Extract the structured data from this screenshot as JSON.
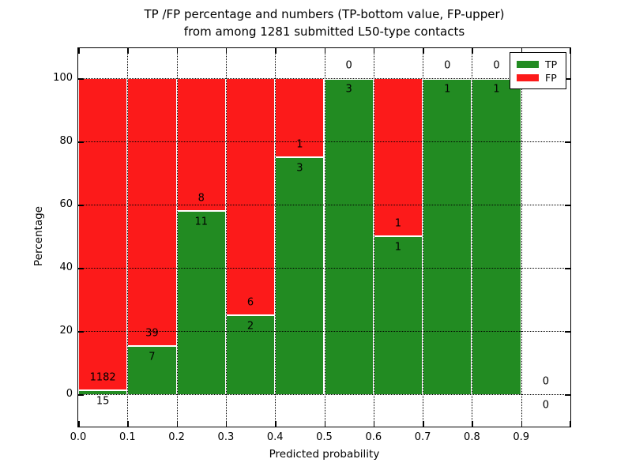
{
  "title": {
    "line1": "TP /FP percentage and numbers (TP-bottom value, FP-upper)",
    "line2": "from among 1281 submitted L50-type contacts"
  },
  "axes": {
    "xlabel": "Predicted probability",
    "ylabel": "Percentage",
    "x_tick_labels": [
      "0.0",
      "0.1",
      "0.2",
      "0.3",
      "0.4",
      "0.5",
      "0.6",
      "0.7",
      "0.8",
      "0.9"
    ],
    "y_tick_labels": [
      "0",
      "20",
      "40",
      "60",
      "80",
      "100"
    ],
    "y_tick_values": [
      0,
      20,
      40,
      60,
      80,
      100
    ],
    "xlim": [
      0.0,
      1.0
    ],
    "grid": "dotted both axes"
  },
  "legend": {
    "position": "upper right",
    "items": [
      {
        "label": "TP",
        "color": "#228b22"
      },
      {
        "label": "FP",
        "color": "#fc1a1a"
      }
    ]
  },
  "colors": {
    "tp_green": "#228b22",
    "fp_red": "#fc1a1a",
    "bar_edge": "#ffffff",
    "text": "#000000",
    "background": "#ffffff"
  },
  "chart_data": {
    "type": "bar",
    "stacked": true,
    "note_total_contacts": 1281,
    "bin_width": 0.1,
    "categories": [
      "0.0-0.1",
      "0.1-0.2",
      "0.2-0.3",
      "0.3-0.4",
      "0.4-0.5",
      "0.5-0.6",
      "0.6-0.7",
      "0.7-0.8",
      "0.8-0.9",
      "0.9-1.0"
    ],
    "series": [
      {
        "name": "TP",
        "counts": [
          15,
          7,
          11,
          2,
          3,
          3,
          1,
          1,
          1,
          0
        ]
      },
      {
        "name": "FP",
        "counts": [
          1182,
          39,
          8,
          6,
          1,
          0,
          1,
          0,
          0,
          0
        ]
      }
    ],
    "bins": [
      {
        "range": [
          0.0,
          0.1
        ],
        "tp": 15,
        "fp": 1182,
        "tp_pct": 1.25
      },
      {
        "range": [
          0.1,
          0.2
        ],
        "tp": 7,
        "fp": 39,
        "tp_pct": 15.22
      },
      {
        "range": [
          0.2,
          0.3
        ],
        "tp": 11,
        "fp": 8,
        "tp_pct": 57.89
      },
      {
        "range": [
          0.3,
          0.4
        ],
        "tp": 2,
        "fp": 6,
        "tp_pct": 25.0
      },
      {
        "range": [
          0.4,
          0.5
        ],
        "tp": 3,
        "fp": 1,
        "tp_pct": 75.0
      },
      {
        "range": [
          0.5,
          0.6
        ],
        "tp": 3,
        "fp": 0,
        "tp_pct": 100.0
      },
      {
        "range": [
          0.6,
          0.7
        ],
        "tp": 1,
        "fp": 1,
        "tp_pct": 50.0
      },
      {
        "range": [
          0.7,
          0.8
        ],
        "tp": 1,
        "fp": 0,
        "tp_pct": 100.0
      },
      {
        "range": [
          0.8,
          0.9
        ],
        "tp": 1,
        "fp": 0,
        "tp_pct": 100.0
      },
      {
        "range": [
          0.9,
          1.0
        ],
        "tp": 0,
        "fp": 0,
        "tp_pct": null
      }
    ],
    "ylabel": "Percentage",
    "xlabel": "Predicted probability",
    "ylim": [
      0,
      100
    ]
  }
}
